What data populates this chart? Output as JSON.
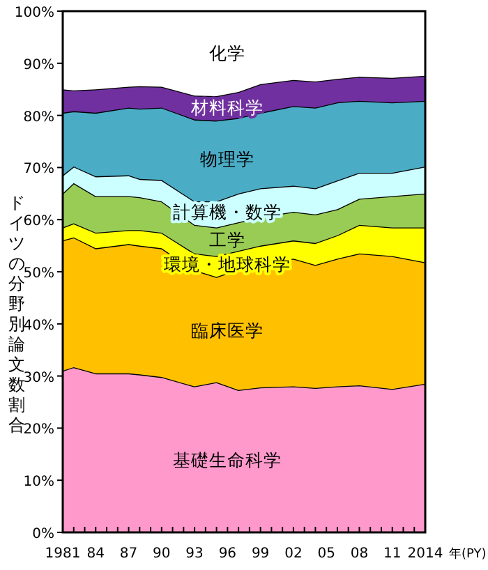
{
  "chart_data": {
    "type": "area",
    "stacked": true,
    "ylabel": "ドイツの分野別論文数割合",
    "xlabel": "年(PY)",
    "x": [
      1981,
      1982,
      1984,
      1987,
      1988,
      1990,
      1993,
      1995,
      1997,
      1999,
      2002,
      2004,
      2006,
      2008,
      2011,
      2014
    ],
    "series": [
      {
        "name": "基礎生命科学",
        "color": "#ff99cc",
        "values": [
          31,
          31.7,
          30.5,
          30.5,
          30.3,
          29.8,
          28,
          28.8,
          27.3,
          27.8,
          28,
          27.7,
          28,
          28.2,
          27.5,
          28.5
        ]
      },
      {
        "name": "臨床医学",
        "color": "#ffc000",
        "values": [
          25,
          24.9,
          24,
          24.8,
          24.7,
          24.7,
          22.3,
          20.2,
          23.2,
          23.7,
          24.5,
          23.6,
          24.5,
          25.3,
          25.5,
          23.3
        ]
      },
      {
        "name": "環境・地球科学",
        "color": "#ffff00",
        "values": [
          2.5,
          2.7,
          3,
          2.7,
          3,
          3,
          3.2,
          4,
          3.5,
          3.5,
          3.5,
          4.2,
          4.5,
          5.5,
          5.5,
          6.7
        ]
      },
      {
        "name": "工学",
        "color": "#99cc55",
        "values": [
          6.5,
          7.7,
          7,
          6.5,
          6.3,
          6,
          5.5,
          5.5,
          5.5,
          5.5,
          5.5,
          5.5,
          5,
          5,
          6,
          6.5
        ]
      },
      {
        "name": "計算機・数学",
        "color": "#ccffff",
        "values": [
          3.5,
          3.2,
          3.8,
          4,
          3.5,
          4.1,
          4.5,
          5,
          5.5,
          5.5,
          5,
          5,
          5.5,
          5,
          4.5,
          5.2
        ]
      },
      {
        "name": "物理学",
        "color": "#4bacc6",
        "values": [
          12,
          10.6,
          12.2,
          13,
          13.5,
          13.9,
          15.7,
          15.5,
          14.5,
          14.5,
          15.3,
          15.5,
          15,
          13.8,
          13.5,
          12.6
        ]
      },
      {
        "name": "材料科学",
        "color": "#7030a0",
        "values": [
          4.5,
          4,
          4.5,
          4,
          4.3,
          4,
          4.6,
          4.7,
          5,
          5.5,
          5,
          5,
          4.5,
          4.6,
          4.7,
          4.8
        ]
      },
      {
        "name": "化学",
        "color": "#ffffff",
        "values": [
          15,
          15.2,
          15,
          14.5,
          14.4,
          14.5,
          16.2,
          16.3,
          15.5,
          14,
          13.2,
          13.5,
          13,
          12.6,
          12.8,
          12.4
        ]
      }
    ],
    "xlim": [
      1981,
      2014
    ],
    "ylim": [
      0,
      100
    ],
    "yticks": [
      {
        "value": 0,
        "label": "0%"
      },
      {
        "value": 10,
        "label": "10%"
      },
      {
        "value": 20,
        "label": "20%"
      },
      {
        "value": 30,
        "label": "30%"
      },
      {
        "value": 40,
        "label": "40%"
      },
      {
        "value": 50,
        "label": "50%"
      },
      {
        "value": 60,
        "label": "60%"
      },
      {
        "value": 70,
        "label": "70%"
      },
      {
        "value": 80,
        "label": "80%"
      },
      {
        "value": 90,
        "label": "90%"
      },
      {
        "value": 100,
        "label": "100%"
      }
    ],
    "xticks": [
      {
        "value": 1981,
        "label": "1981"
      },
      {
        "value": 1982,
        "label": null
      },
      {
        "value": 1983,
        "label": null
      },
      {
        "value": 1984,
        "label": "84"
      },
      {
        "value": 1985,
        "label": null
      },
      {
        "value": 1986,
        "label": null
      },
      {
        "value": 1987,
        "label": "87"
      },
      {
        "value": 1988,
        "label": null
      },
      {
        "value": 1989,
        "label": null
      },
      {
        "value": 1990,
        "label": "90"
      },
      {
        "value": 1991,
        "label": null
      },
      {
        "value": 1992,
        "label": null
      },
      {
        "value": 1993,
        "label": "93"
      },
      {
        "value": 1994,
        "label": null
      },
      {
        "value": 1995,
        "label": null
      },
      {
        "value": 1996,
        "label": "96"
      },
      {
        "value": 1997,
        "label": null
      },
      {
        "value": 1998,
        "label": null
      },
      {
        "value": 1999,
        "label": "99"
      },
      {
        "value": 2000,
        "label": null
      },
      {
        "value": 2001,
        "label": null
      },
      {
        "value": 2002,
        "label": "02"
      },
      {
        "value": 2003,
        "label": null
      },
      {
        "value": 2004,
        "label": null
      },
      {
        "value": 2005,
        "label": "05"
      },
      {
        "value": 2006,
        "label": null
      },
      {
        "value": 2007,
        "label": null
      },
      {
        "value": 2008,
        "label": "08"
      },
      {
        "value": 2009,
        "label": null
      },
      {
        "value": 2010,
        "label": null
      },
      {
        "value": 2011,
        "label": "11"
      },
      {
        "value": 2012,
        "label": null
      },
      {
        "value": 2013,
        "label": null
      },
      {
        "value": 2014,
        "label": "2014"
      }
    ]
  }
}
